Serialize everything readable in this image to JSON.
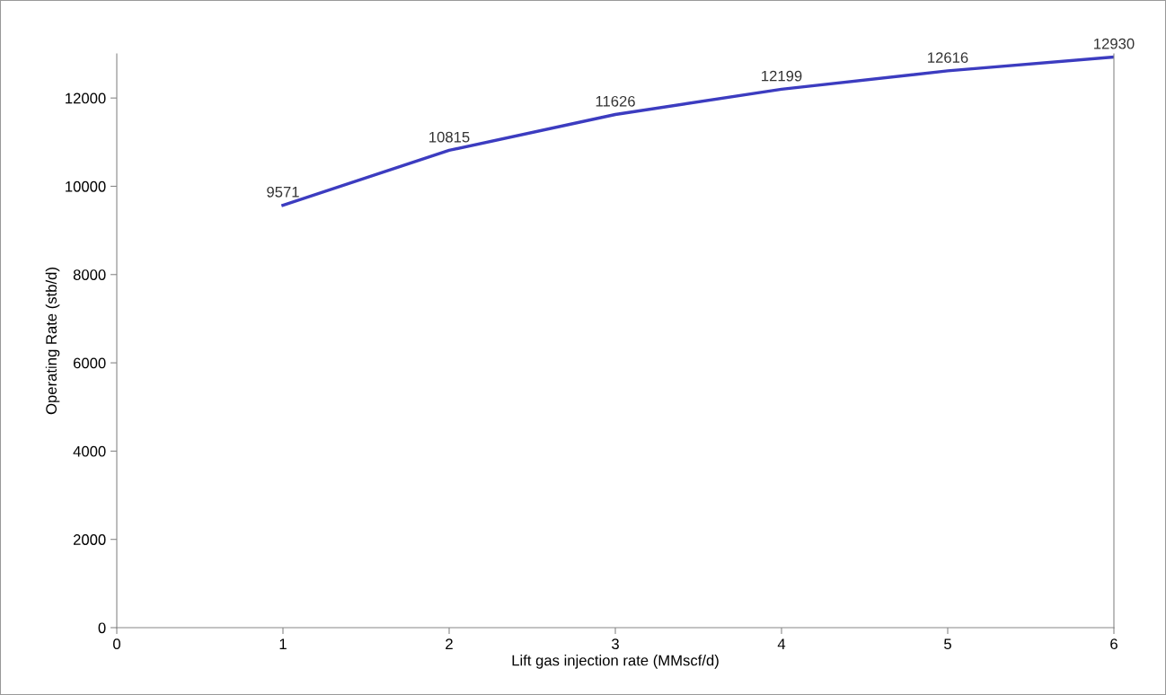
{
  "chart_data": {
    "type": "line",
    "xlabel": "Lift gas injection rate (MMscf/d)",
    "ylabel": "Operating Rate (stb/d)",
    "x": [
      1,
      2,
      3,
      4,
      5,
      6
    ],
    "series": [
      {
        "color": "#3c3cc0",
        "values": [
          9571,
          10815,
          11626,
          12199,
          12616,
          12930
        ]
      }
    ],
    "data_labels": true,
    "xlim": [
      0,
      6
    ],
    "ylim": [
      0,
      13000
    ],
    "xticks": [
      0,
      1,
      2,
      3,
      4,
      5,
      6
    ],
    "yticks": [
      0,
      2000,
      4000,
      6000,
      8000,
      10000,
      12000
    ],
    "grid": false,
    "legend": false,
    "marker": "none",
    "line_style": "solid"
  }
}
